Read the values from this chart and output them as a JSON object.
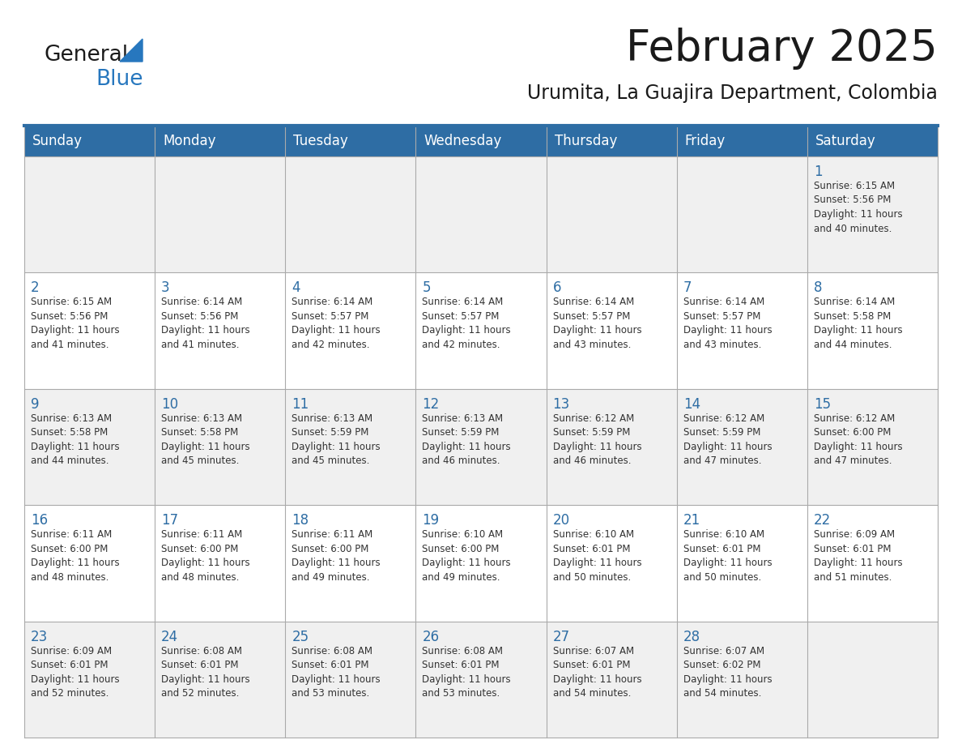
{
  "title": "February 2025",
  "subtitle": "Urumita, La Guajira Department, Colombia",
  "header_color": "#2E6DA4",
  "header_text_color": "#FFFFFF",
  "day_number_color": "#2E6DA4",
  "text_color": "#333333",
  "grid_line_color": "#AAAAAA",
  "cell_bg_even": "#F0F0F0",
  "cell_bg_odd": "#FFFFFF",
  "logo_general_color": "#1A1A1A",
  "logo_blue_color": "#2777BE",
  "days_of_week": [
    "Sunday",
    "Monday",
    "Tuesday",
    "Wednesday",
    "Thursday",
    "Friday",
    "Saturday"
  ],
  "weeks": [
    [
      {
        "day": 0,
        "text": ""
      },
      {
        "day": 0,
        "text": ""
      },
      {
        "day": 0,
        "text": ""
      },
      {
        "day": 0,
        "text": ""
      },
      {
        "day": 0,
        "text": ""
      },
      {
        "day": 0,
        "text": ""
      },
      {
        "day": 1,
        "text": "Sunrise: 6:15 AM\nSunset: 5:56 PM\nDaylight: 11 hours\nand 40 minutes."
      }
    ],
    [
      {
        "day": 2,
        "text": "Sunrise: 6:15 AM\nSunset: 5:56 PM\nDaylight: 11 hours\nand 41 minutes."
      },
      {
        "day": 3,
        "text": "Sunrise: 6:14 AM\nSunset: 5:56 PM\nDaylight: 11 hours\nand 41 minutes."
      },
      {
        "day": 4,
        "text": "Sunrise: 6:14 AM\nSunset: 5:57 PM\nDaylight: 11 hours\nand 42 minutes."
      },
      {
        "day": 5,
        "text": "Sunrise: 6:14 AM\nSunset: 5:57 PM\nDaylight: 11 hours\nand 42 minutes."
      },
      {
        "day": 6,
        "text": "Sunrise: 6:14 AM\nSunset: 5:57 PM\nDaylight: 11 hours\nand 43 minutes."
      },
      {
        "day": 7,
        "text": "Sunrise: 6:14 AM\nSunset: 5:57 PM\nDaylight: 11 hours\nand 43 minutes."
      },
      {
        "day": 8,
        "text": "Sunrise: 6:14 AM\nSunset: 5:58 PM\nDaylight: 11 hours\nand 44 minutes."
      }
    ],
    [
      {
        "day": 9,
        "text": "Sunrise: 6:13 AM\nSunset: 5:58 PM\nDaylight: 11 hours\nand 44 minutes."
      },
      {
        "day": 10,
        "text": "Sunrise: 6:13 AM\nSunset: 5:58 PM\nDaylight: 11 hours\nand 45 minutes."
      },
      {
        "day": 11,
        "text": "Sunrise: 6:13 AM\nSunset: 5:59 PM\nDaylight: 11 hours\nand 45 minutes."
      },
      {
        "day": 12,
        "text": "Sunrise: 6:13 AM\nSunset: 5:59 PM\nDaylight: 11 hours\nand 46 minutes."
      },
      {
        "day": 13,
        "text": "Sunrise: 6:12 AM\nSunset: 5:59 PM\nDaylight: 11 hours\nand 46 minutes."
      },
      {
        "day": 14,
        "text": "Sunrise: 6:12 AM\nSunset: 5:59 PM\nDaylight: 11 hours\nand 47 minutes."
      },
      {
        "day": 15,
        "text": "Sunrise: 6:12 AM\nSunset: 6:00 PM\nDaylight: 11 hours\nand 47 minutes."
      }
    ],
    [
      {
        "day": 16,
        "text": "Sunrise: 6:11 AM\nSunset: 6:00 PM\nDaylight: 11 hours\nand 48 minutes."
      },
      {
        "day": 17,
        "text": "Sunrise: 6:11 AM\nSunset: 6:00 PM\nDaylight: 11 hours\nand 48 minutes."
      },
      {
        "day": 18,
        "text": "Sunrise: 6:11 AM\nSunset: 6:00 PM\nDaylight: 11 hours\nand 49 minutes."
      },
      {
        "day": 19,
        "text": "Sunrise: 6:10 AM\nSunset: 6:00 PM\nDaylight: 11 hours\nand 49 minutes."
      },
      {
        "day": 20,
        "text": "Sunrise: 6:10 AM\nSunset: 6:01 PM\nDaylight: 11 hours\nand 50 minutes."
      },
      {
        "day": 21,
        "text": "Sunrise: 6:10 AM\nSunset: 6:01 PM\nDaylight: 11 hours\nand 50 minutes."
      },
      {
        "day": 22,
        "text": "Sunrise: 6:09 AM\nSunset: 6:01 PM\nDaylight: 11 hours\nand 51 minutes."
      }
    ],
    [
      {
        "day": 23,
        "text": "Sunrise: 6:09 AM\nSunset: 6:01 PM\nDaylight: 11 hours\nand 52 minutes."
      },
      {
        "day": 24,
        "text": "Sunrise: 6:08 AM\nSunset: 6:01 PM\nDaylight: 11 hours\nand 52 minutes."
      },
      {
        "day": 25,
        "text": "Sunrise: 6:08 AM\nSunset: 6:01 PM\nDaylight: 11 hours\nand 53 minutes."
      },
      {
        "day": 26,
        "text": "Sunrise: 6:08 AM\nSunset: 6:01 PM\nDaylight: 11 hours\nand 53 minutes."
      },
      {
        "day": 27,
        "text": "Sunrise: 6:07 AM\nSunset: 6:01 PM\nDaylight: 11 hours\nand 54 minutes."
      },
      {
        "day": 28,
        "text": "Sunrise: 6:07 AM\nSunset: 6:02 PM\nDaylight: 11 hours\nand 54 minutes."
      },
      {
        "day": 0,
        "text": ""
      }
    ]
  ],
  "title_fontsize": 38,
  "subtitle_fontsize": 17,
  "header_fontsize": 12,
  "day_num_fontsize": 12,
  "cell_text_fontsize": 8.5
}
